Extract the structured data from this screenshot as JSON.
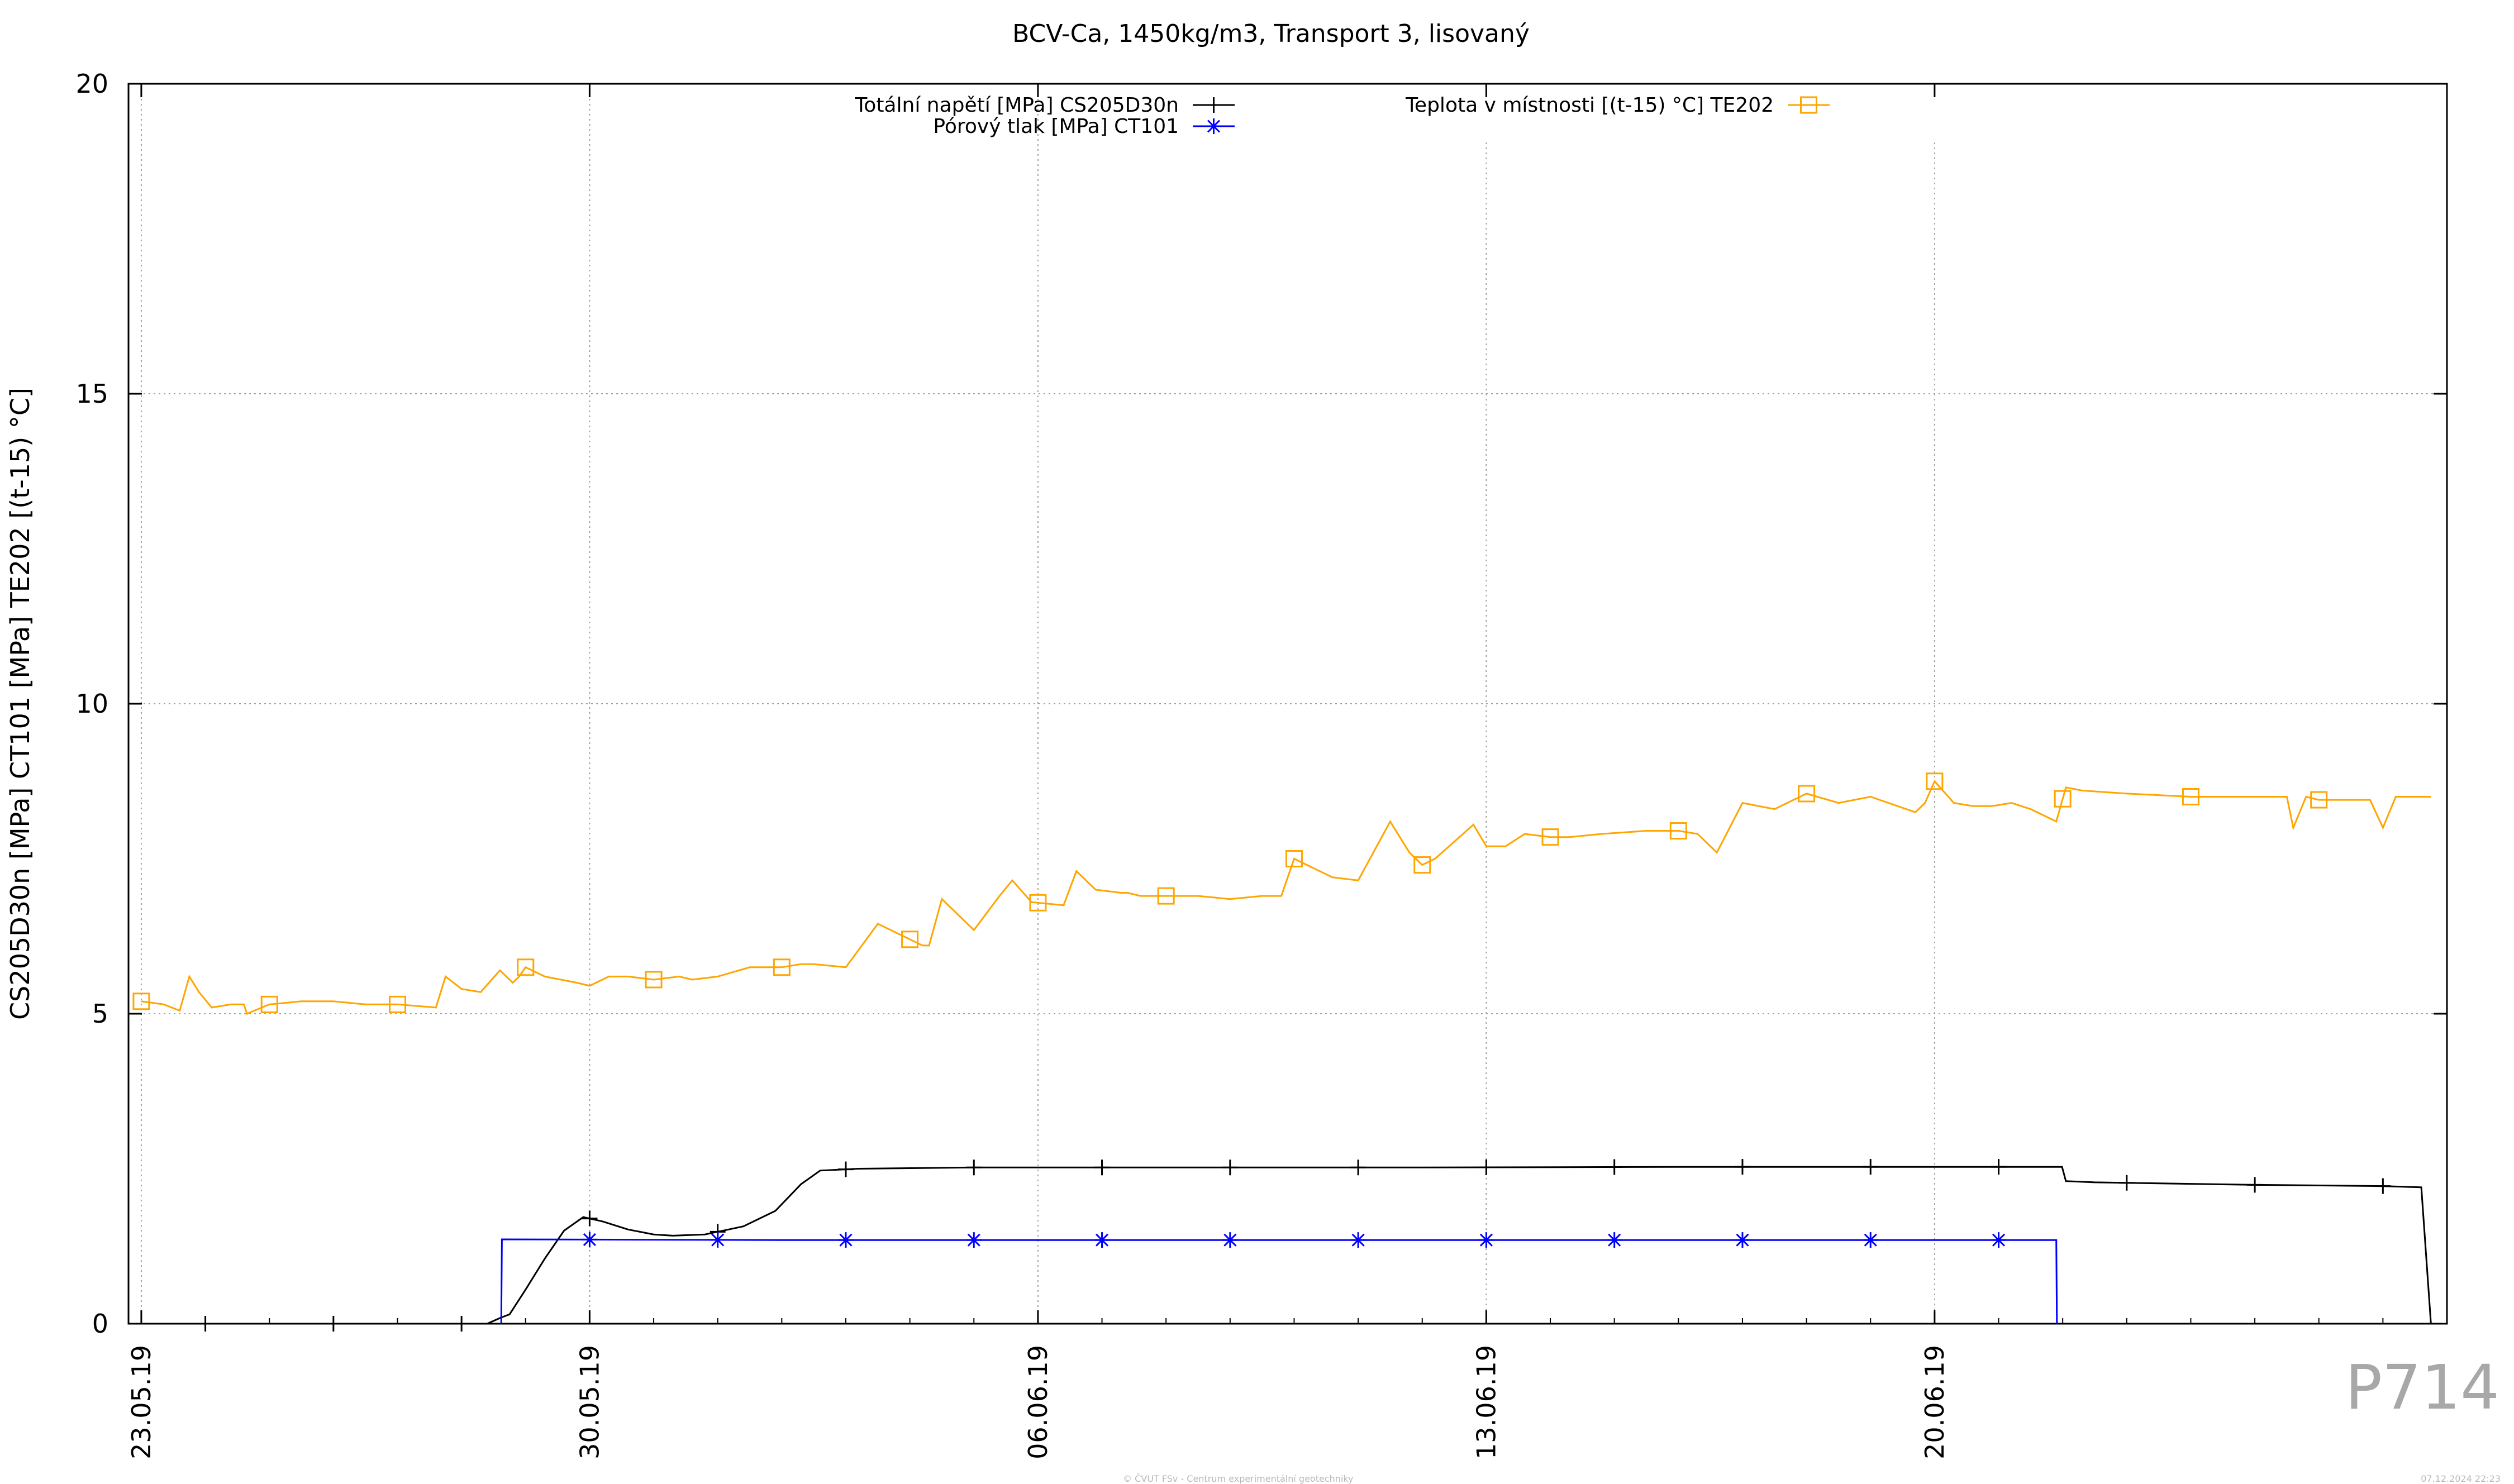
{
  "chart_data": {
    "type": "line",
    "title": "BCV-Ca, 1450kg/m3, Transport 3, lisovaný",
    "xlabel": "",
    "ylabel": "CS205D30n [MPa] CT101 [MPa] TE202 [(t-15) °C]",
    "xlim": [
      "2019-05-23",
      "2019-06-28"
    ],
    "ylim": [
      0,
      20
    ],
    "x_ticks": [
      "23.05.19",
      "30.05.19",
      "06.06.19",
      "13.06.19",
      "20.06.19"
    ],
    "y_ticks": [
      0,
      5,
      10,
      15,
      20
    ],
    "grid": true,
    "legend_position": "top",
    "series": [
      {
        "name": "Totální napětí [MPa] CS205D30n",
        "color": "#000000",
        "marker": "plus",
        "x": [
          0,
          2.0,
          3.0,
          4.0,
          5.4,
          5.62,
          5.75,
          6.0,
          6.3,
          6.6,
          6.9,
          7.2,
          7.6,
          8.0,
          8.3,
          8.8,
          9.4,
          9.9,
          10.3,
          10.6,
          11.2,
          13.0,
          16.0,
          20.0,
          24.0,
          28.0,
          29.99,
          30.05,
          30.5,
          33.0,
          35.0,
          35.6,
          35.75
        ],
        "y": [
          0,
          0,
          0,
          0,
          0,
          0.1,
          0.15,
          0.55,
          1.05,
          1.5,
          1.72,
          1.65,
          1.52,
          1.44,
          1.42,
          1.44,
          1.57,
          1.82,
          2.25,
          2.47,
          2.5,
          2.52,
          2.52,
          2.52,
          2.53,
          2.53,
          2.53,
          2.3,
          2.28,
          2.24,
          2.22,
          2.2,
          0
        ]
      },
      {
        "name": "Pórový tlak [MPa] CT101",
        "color": "#0000ff",
        "marker": "star",
        "x": [
          5.62,
          5.63,
          10.0,
          20.0,
          29.9,
          29.91
        ],
        "y": [
          0,
          1.36,
          1.35,
          1.35,
          1.35,
          0
        ]
      },
      {
        "name": "Teplota v místnosti [(t-15) °C] TE202",
        "color": "#ffa500",
        "marker": "square",
        "x": [
          0,
          0.35,
          0.6,
          0.75,
          0.9,
          1.1,
          1.4,
          1.6,
          1.65,
          2.0,
          2.5,
          3.0,
          3.5,
          4.0,
          4.6,
          4.75,
          5.0,
          5.3,
          5.6,
          5.8,
          5.9,
          6.0,
          6.3,
          6.8,
          7.0,
          7.1,
          7.3,
          7.6,
          8.0,
          8.4,
          8.6,
          9.0,
          9.5,
          10.0,
          10.3,
          10.5,
          11.0,
          11.5,
          12.0,
          12.2,
          12.3,
          12.5,
          13.0,
          13.4,
          13.6,
          13.9,
          14.4,
          14.6,
          14.9,
          15.3,
          15.4,
          15.6,
          16.0,
          16.5,
          17.0,
          17.5,
          17.8,
          18.0,
          18.3,
          18.6,
          19.0,
          19.5,
          19.8,
          20.0,
          20.2,
          20.8,
          21.0,
          21.3,
          21.6,
          22.0,
          22.3,
          22.8,
          23.5,
          24.0,
          24.3,
          24.6,
          25.0,
          25.5,
          26.0,
          26.5,
          27.0,
          27.7,
          27.85,
          28.0,
          28.3,
          28.6,
          28.9,
          29.2,
          29.5,
          29.9,
          30.05,
          30.3,
          31.0,
          32.0,
          33.5,
          33.6,
          33.8,
          34.0,
          34.8,
          35.0,
          35.2,
          35.75
        ],
        "y": [
          5.2,
          5.15,
          5.05,
          5.6,
          5.35,
          5.1,
          5.15,
          5.15,
          5.0,
          5.15,
          5.2,
          5.2,
          5.15,
          5.15,
          5.1,
          5.6,
          5.4,
          5.35,
          5.7,
          5.5,
          5.6,
          5.75,
          5.6,
          5.5,
          5.45,
          5.5,
          5.6,
          5.6,
          5.55,
          5.6,
          5.55,
          5.6,
          5.75,
          5.75,
          5.8,
          5.8,
          5.75,
          6.45,
          6.2,
          6.1,
          6.1,
          6.85,
          6.35,
          6.9,
          7.15,
          6.8,
          6.75,
          7.3,
          7.0,
          6.95,
          6.95,
          6.9,
          6.9,
          6.9,
          6.85,
          6.9,
          6.9,
          7.5,
          7.35,
          7.2,
          7.15,
          8.1,
          7.6,
          7.4,
          7.5,
          8.05,
          7.7,
          7.7,
          7.9,
          7.85,
          7.85,
          7.9,
          7.95,
          7.95,
          7.9,
          7.6,
          8.4,
          8.3,
          8.55,
          8.4,
          8.5,
          8.25,
          8.4,
          8.75,
          8.4,
          8.35,
          8.35,
          8.4,
          8.3,
          8.1,
          8.65,
          8.6,
          8.55,
          8.5,
          8.5,
          8.0,
          8.5,
          8.45,
          8.45,
          8.0,
          8.5,
          8.5
        ]
      }
    ]
  },
  "watermark": "P714",
  "footer_left": "© ČVUT FSv - Centrum experimentální geotechniky",
  "footer_right": "07.12.2024 22:23"
}
